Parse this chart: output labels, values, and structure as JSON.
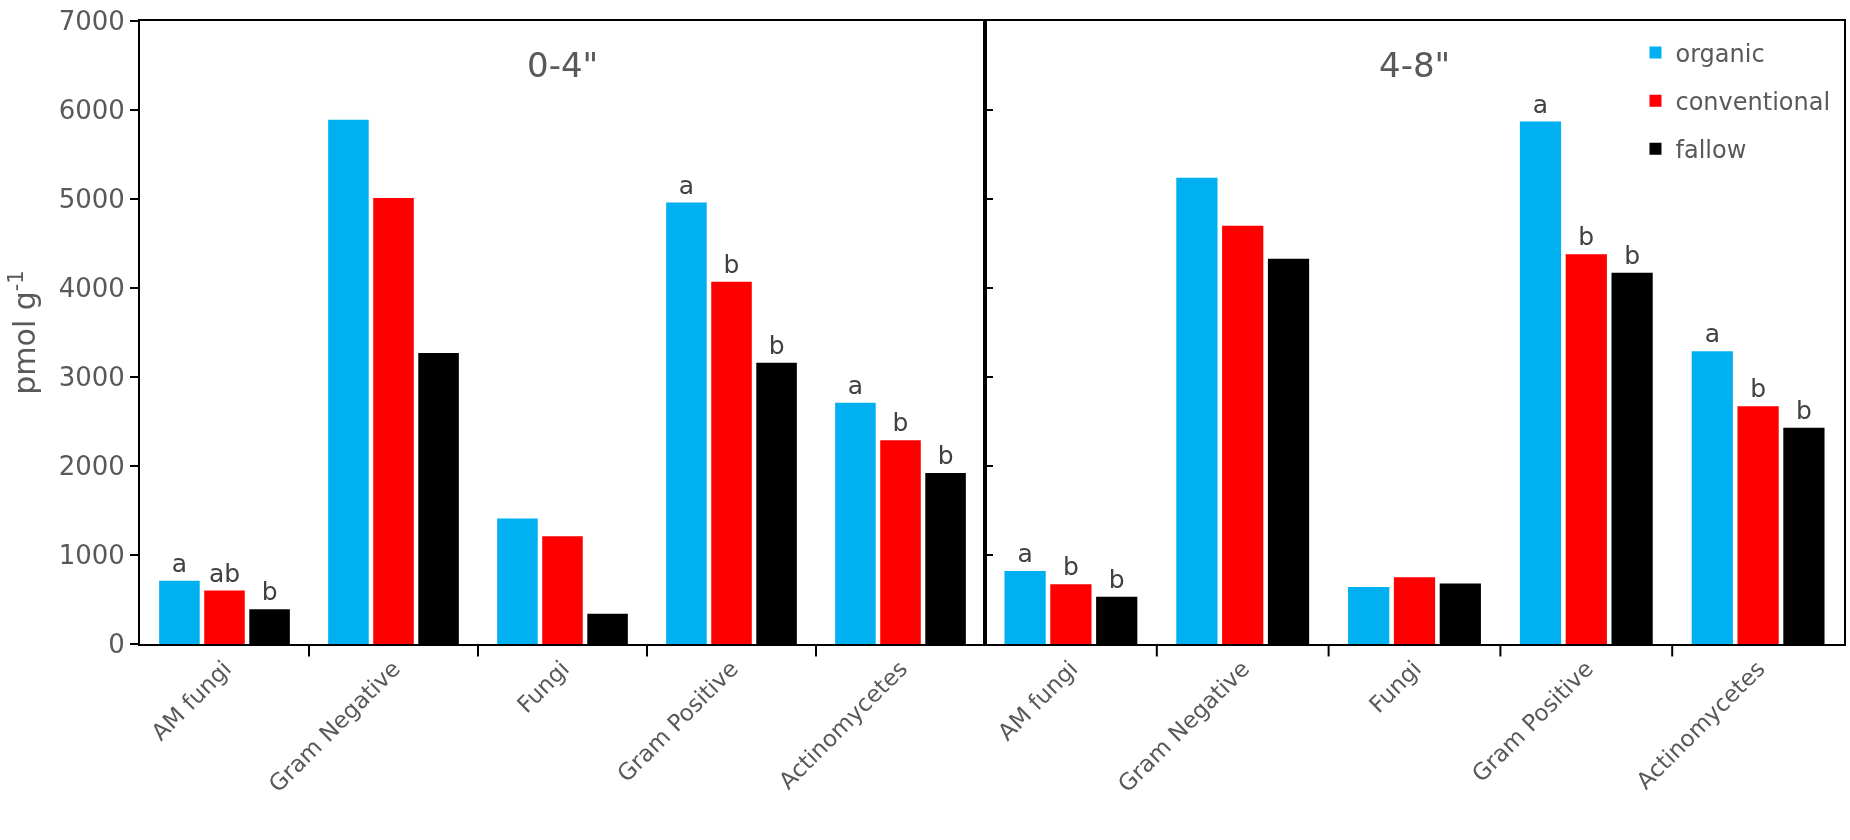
{
  "chart_data": [
    {
      "type": "bar",
      "title": "0-4\"",
      "ylabel": "pmol g$^{-1}$",
      "categories": [
        "AM fungi",
        "Gram Negative",
        "Fungi",
        "Gram Positive",
        "Actinomycetes"
      ],
      "ylim": [
        0,
        7000
      ],
      "yticks": [
        0,
        1000,
        2000,
        3000,
        4000,
        5000,
        6000,
        7000
      ],
      "series": [
        {
          "color": "#00b0f0",
          "values": [
            710,
            5890,
            1410,
            4960,
            2710
          ],
          "value_labels": [
            "a",
            null,
            null,
            "a",
            "a"
          ]
        },
        {
          "color": "#ff0000",
          "values": [
            600,
            5010,
            1210,
            4070,
            2290
          ],
          "value_labels": [
            "ab",
            null,
            null,
            "b",
            "b"
          ]
        },
        {
          "color": "#000000",
          "values": [
            390,
            3270,
            340,
            3160,
            1920
          ],
          "value_labels": [
            "b",
            null,
            null,
            "b",
            "b"
          ]
        }
      ]
    },
    {
      "type": "bar",
      "title": "4-8\"",
      "categories": [
        "AM fungi",
        "Gram Negative",
        "Fungi",
        "Gram Positive",
        "Actinomycetes"
      ],
      "ylim": [
        0,
        7000
      ],
      "yticks": [
        0,
        1000,
        2000,
        3000,
        4000,
        5000,
        6000,
        7000
      ],
      "legend": "top right",
      "tick_labels": "x",
      "series": [
        {
          "name": "organic",
          "color": "#00b0f0",
          "values": [
            820,
            5240,
            640,
            5870,
            3290
          ],
          "value_labels": [
            "a",
            null,
            null,
            "a",
            "a"
          ]
        },
        {
          "name": "conventional",
          "color": "#ff0000",
          "values": [
            670,
            4700,
            750,
            4380,
            2670
          ],
          "value_labels": [
            "b",
            null,
            null,
            "b",
            "b"
          ]
        },
        {
          "name": "fallow",
          "color": "#000000",
          "values": [
            530,
            4330,
            680,
            4170,
            2430
          ],
          "value_labels": [
            "b",
            null,
            null,
            "b",
            "b"
          ]
        }
      ]
    }
  ]
}
